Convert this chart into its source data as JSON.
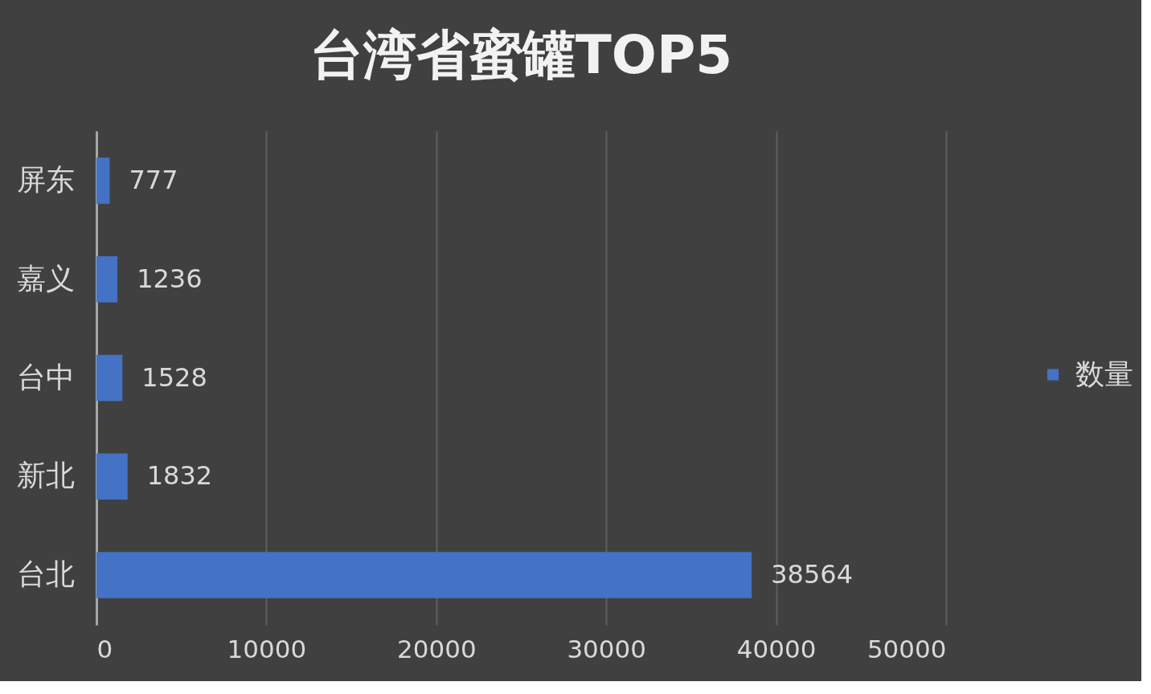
{
  "chart_data": {
    "type": "bar",
    "title": "台湾省蜜罐TOP5",
    "orientation": "horizontal",
    "categories": [
      "屏东",
      "嘉义",
      "台中",
      "新北",
      "台北"
    ],
    "series": [
      {
        "name": "数量",
        "color": "#4472c4",
        "values": [
          777,
          1236,
          1528,
          1832,
          38564
        ]
      }
    ],
    "xlim": [
      0,
      50000
    ],
    "xticks": [
      0,
      10000,
      20000,
      30000,
      40000,
      50000
    ],
    "grid": "x",
    "legend": "right",
    "data_labels": true
  }
}
